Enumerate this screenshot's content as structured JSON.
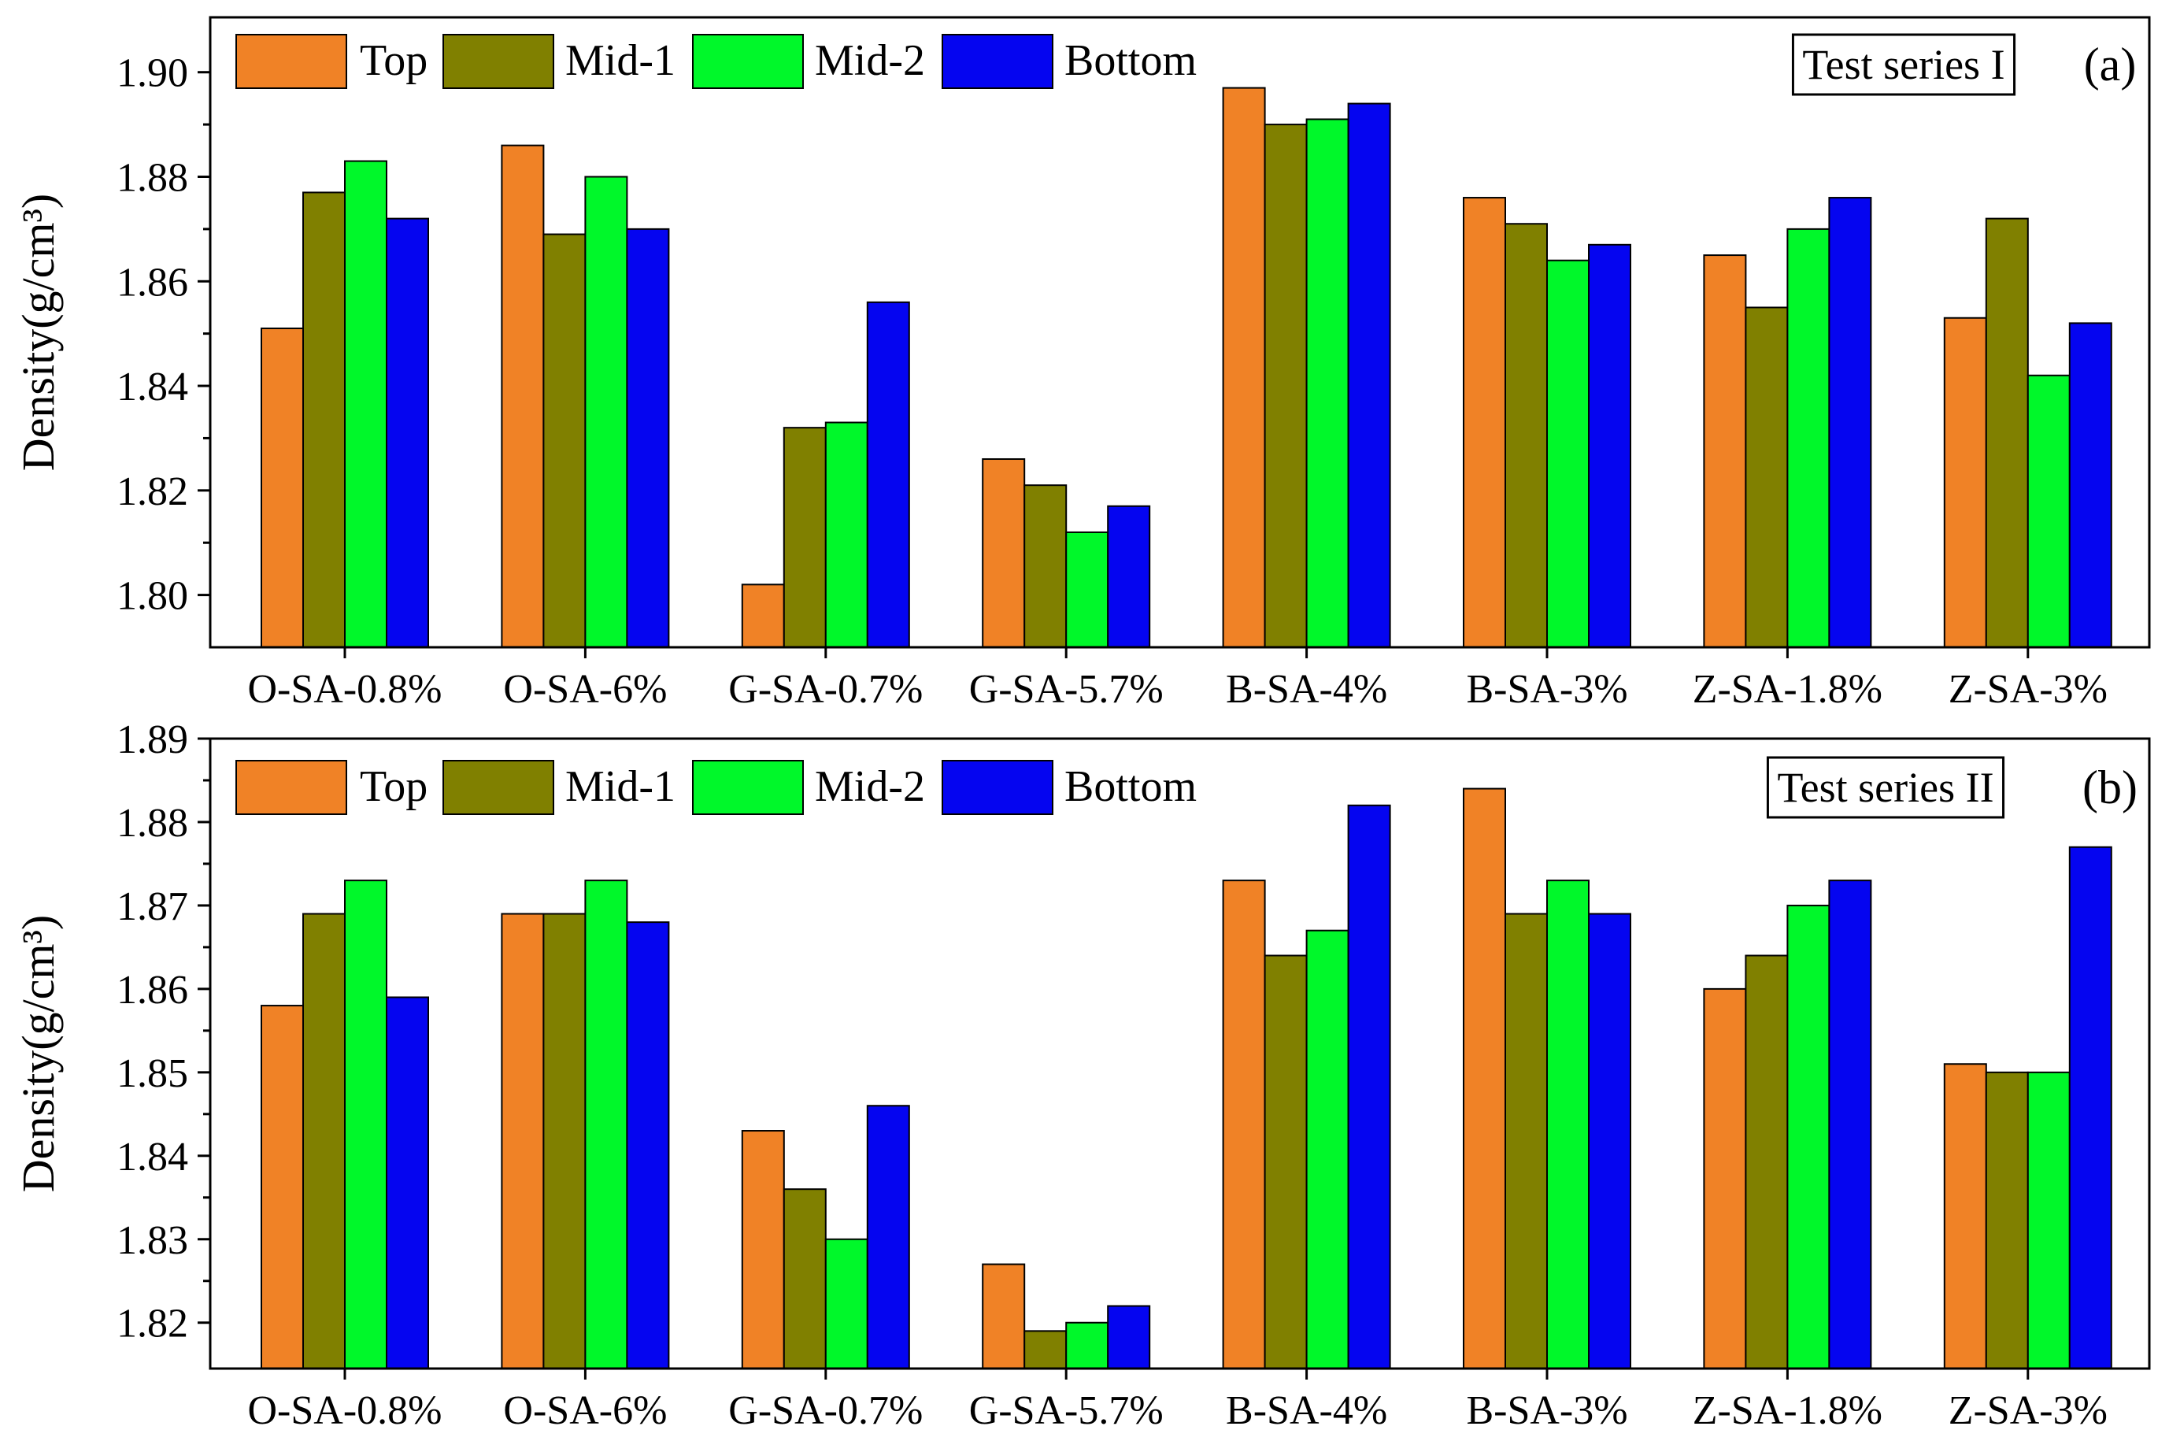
{
  "chart_data": [
    {
      "type": "bar",
      "panel_label": "(a)",
      "annotation": "Test series I",
      "xlabel": "",
      "ylabel": "Density(g/cm³)",
      "ylim": [
        1.79,
        1.9105
      ],
      "yticks": [
        "1.80",
        "1.82",
        "1.84",
        "1.86",
        "1.88",
        "1.90"
      ],
      "categories": [
        "O-SA-0.8%",
        "O-SA-6%",
        "G-SA-0.7%",
        "G-SA-5.7%",
        "B-SA-4%",
        "B-SA-3%",
        "Z-SA-1.8%",
        "Z-SA-3%"
      ],
      "legend_position": "top-left",
      "series": [
        {
          "name": "Top",
          "color": "#F08226",
          "values": [
            1.851,
            1.886,
            1.802,
            1.826,
            1.897,
            1.876,
            1.865,
            1.853
          ]
        },
        {
          "name": "Mid-1",
          "color": "#808000",
          "values": [
            1.877,
            1.869,
            1.832,
            1.821,
            1.89,
            1.871,
            1.855,
            1.872
          ]
        },
        {
          "name": "Mid-2",
          "color": "#00F82A",
          "values": [
            1.883,
            1.88,
            1.833,
            1.812,
            1.891,
            1.864,
            1.87,
            1.842
          ]
        },
        {
          "name": "Bottom",
          "color": "#0505F0",
          "values": [
            1.872,
            1.87,
            1.856,
            1.817,
            1.894,
            1.867,
            1.876,
            1.852
          ]
        }
      ]
    },
    {
      "type": "bar",
      "panel_label": "(b)",
      "annotation": "Test series II",
      "xlabel": "",
      "ylabel": "Density(g/cm³)",
      "ylim": [
        1.8145,
        1.89
      ],
      "yticks": [
        "1.82",
        "1.83",
        "1.84",
        "1.85",
        "1.86",
        "1.87",
        "1.88",
        "1.89"
      ],
      "categories": [
        "O-SA-0.8%",
        "O-SA-6%",
        "G-SA-0.7%",
        "G-SA-5.7%",
        "B-SA-4%",
        "B-SA-3%",
        "Z-SA-1.8%",
        "Z-SA-3%"
      ],
      "legend_position": "top-left",
      "series": [
        {
          "name": "Top",
          "color": "#F08226",
          "values": [
            1.858,
            1.869,
            1.843,
            1.827,
            1.873,
            1.884,
            1.86,
            1.851
          ]
        },
        {
          "name": "Mid-1",
          "color": "#808000",
          "values": [
            1.869,
            1.869,
            1.836,
            1.819,
            1.864,
            1.869,
            1.864,
            1.85
          ]
        },
        {
          "name": "Mid-2",
          "color": "#00F82A",
          "values": [
            1.873,
            1.873,
            1.83,
            1.82,
            1.867,
            1.873,
            1.87,
            1.85
          ]
        },
        {
          "name": "Bottom",
          "color": "#0505F0",
          "values": [
            1.859,
            1.868,
            1.846,
            1.822,
            1.882,
            1.869,
            1.873,
            1.877
          ]
        }
      ]
    }
  ]
}
